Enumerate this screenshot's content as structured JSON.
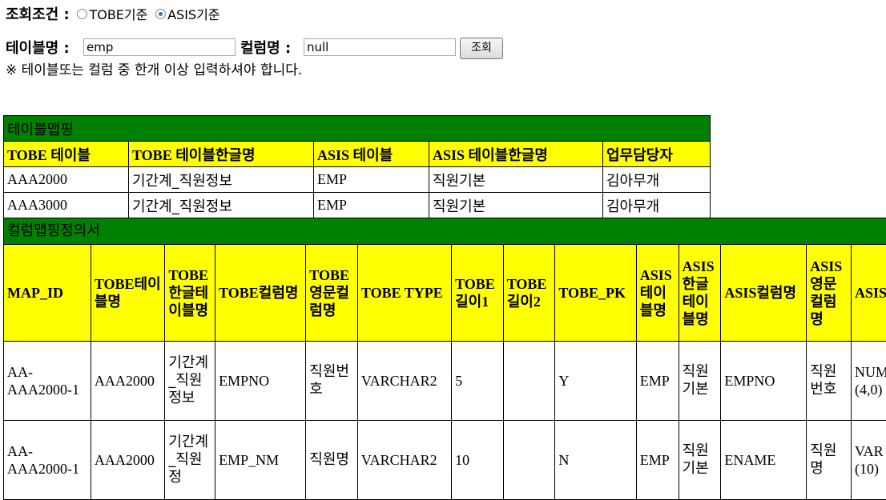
{
  "search": {
    "condition_label": "조회조건 :",
    "option_tobe": "TOBE기준",
    "option_asis": "ASIS기준",
    "selected": "ASIS기준",
    "table_label": "테이블명 :",
    "table_value": "emp",
    "column_label": "컬럼명 :",
    "column_value": "null",
    "search_button": "조회",
    "notice": "※ 테이블또는 컬럼 중 한개 이상 입력하셔야 합니다."
  },
  "table_mapping": {
    "caption": "테이블맵핑",
    "headers": [
      "TOBE 테이블",
      "TOBE 테이블한글명",
      "ASIS 테이블",
      "ASIS 테이블한글명",
      "업무담당자"
    ],
    "rows": [
      [
        "AAA2000",
        "기간계_직원정보",
        "EMP",
        "직원기본",
        "김아무개"
      ],
      [
        "AAA3000",
        "기간계_직원정보",
        "EMP",
        "직원기본",
        "김아무개"
      ]
    ]
  },
  "column_mapping": {
    "caption": "컬럼맵핑정의서",
    "headers": [
      "MAP_ID",
      "TOBE테이블명",
      "TOBE 한글테이블명",
      "TOBE컬럼명",
      "TOBE 영문컬럼명",
      "TOBE TYPE",
      "TOBE 길이1",
      "TOBE 길이2",
      "TOBE_PK",
      "ASIS 테이블명",
      "ASIS 한글테이블명",
      "ASIS컬럼명",
      "ASIS 영문컬럼명",
      "ASIS"
    ],
    "rows": [
      [
        "AA-AAA2000-1",
        "AAA2000",
        "기간계_직원정보",
        "EMPNO",
        "직원번호",
        "VARCHAR2",
        "5",
        "",
        "Y",
        "EMP",
        "직원기본",
        "EMPNO",
        "직원번호",
        "NUM (4,0)"
      ],
      [
        "AA-AAA2000-1",
        "AAA2000",
        "기간계_직원정",
        "EMP_NM",
        "직원명",
        "VARCHAR2",
        "10",
        "",
        "N",
        "EMP",
        "직원기본",
        "ENAME",
        "직원명",
        "VAR (10)"
      ]
    ]
  }
}
